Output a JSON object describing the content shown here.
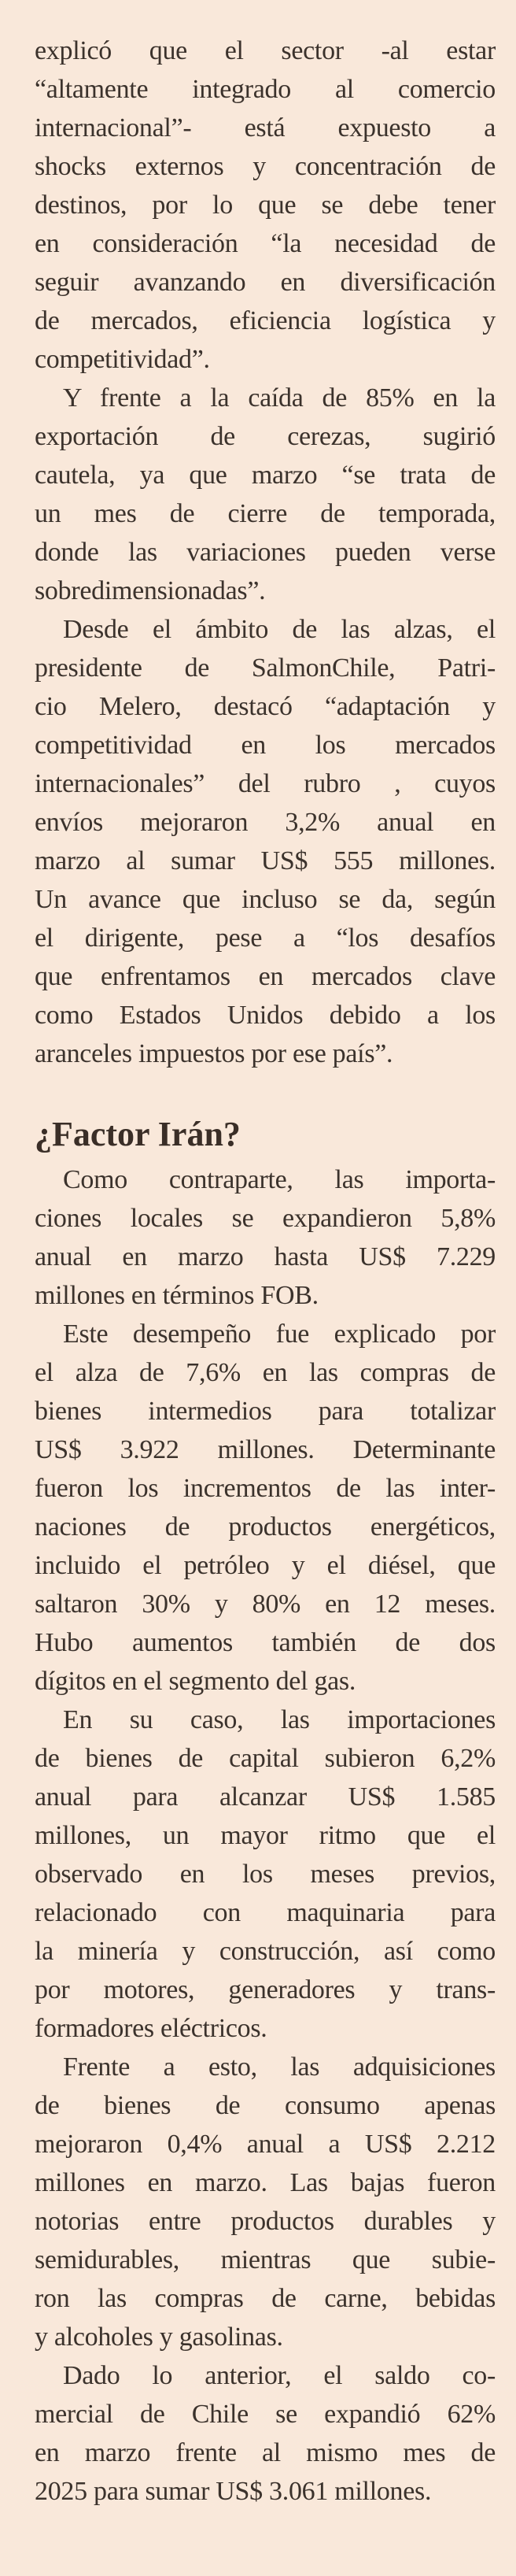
{
  "colors": {
    "background": "#f9e8da",
    "text": "#3b322c"
  },
  "sections": [
    {
      "heading": "",
      "paragraphs": [
        {
          "indent": false,
          "lines": [
            "explicó que el sector -al estar",
            "“altamente integrado al comercio",
            "internacional”- está expuesto a",
            "shocks externos y concentración de",
            "destinos, por lo que se debe tener",
            "en consideración “la necesidad de",
            "seguir avanzando en diversificación",
            "de mercados, eficiencia logística y",
            "competitividad”."
          ]
        },
        {
          "indent": true,
          "lines": [
            "Y frente a la caída de 85% en la",
            "exportación de cerezas, sugirió",
            "cautela, ya que marzo “se trata de",
            "un mes de cierre de temporada,",
            "donde las variaciones pueden verse",
            "sobredimensionadas”."
          ]
        },
        {
          "indent": true,
          "lines": [
            "Desde el ámbito de las alzas, el",
            "presidente de SalmonChile, Patri-",
            "cio Melero, destacó “adaptación y",
            "competitividad en los mercados",
            "internacionales” del rubro , cuyos",
            "envíos mejoraron 3,2% anual en",
            "marzo al sumar US$ 555 millones.",
            "Un avance que incluso se da, según",
            "el dirigente, pese a “los desafíos",
            "que enfrentamos en mercados clave",
            "como Estados Unidos debido a los",
            "aranceles impuestos por ese país”."
          ]
        }
      ]
    },
    {
      "heading": "¿Factor Irán?",
      "paragraphs": [
        {
          "indent": true,
          "lines": [
            "Como contraparte, las importa-",
            "ciones locales se expandieron 5,8%",
            "anual en marzo hasta US$ 7.229",
            "millones en términos FOB."
          ]
        },
        {
          "indent": true,
          "lines": [
            "Este desempeño fue explicado por",
            "el alza de 7,6% en las compras de",
            "bienes intermedios para totalizar",
            "US$ 3.922 millones. Determinante",
            "fueron los incrementos de las inter-",
            "naciones de productos energéticos,",
            "incluido el petróleo y el diésel, que",
            "saltaron 30% y 80% en 12 meses.",
            "Hubo aumentos también de dos",
            "dígitos en el segmento del gas."
          ]
        },
        {
          "indent": true,
          "lines": [
            "En su caso, las importaciones",
            "de bienes de capital subieron 6,2%",
            "anual para alcanzar US$ 1.585",
            "millones, un mayor ritmo que el",
            "observado en los meses previos,",
            "relacionado con maquinaria para",
            "la minería y construcción, así como",
            "por motores, generadores y trans-",
            "formadores eléctricos."
          ]
        },
        {
          "indent": true,
          "lines": [
            "Frente a esto, las adquisiciones",
            "de bienes de consumo apenas",
            "mejoraron 0,4% anual a US$ 2.212",
            "millones en marzo. Las bajas fueron",
            "notorias entre productos durables y",
            "semidurables, mientras que subie-",
            "ron las compras de carne, bebidas",
            "y alcoholes y gasolinas."
          ]
        },
        {
          "indent": true,
          "lines": [
            "Dado lo anterior, el saldo co-",
            "mercial de Chile se expandió 62%",
            "en marzo frente al mismo mes de",
            "2025 para sumar US$ 3.061 millones."
          ]
        }
      ]
    }
  ]
}
